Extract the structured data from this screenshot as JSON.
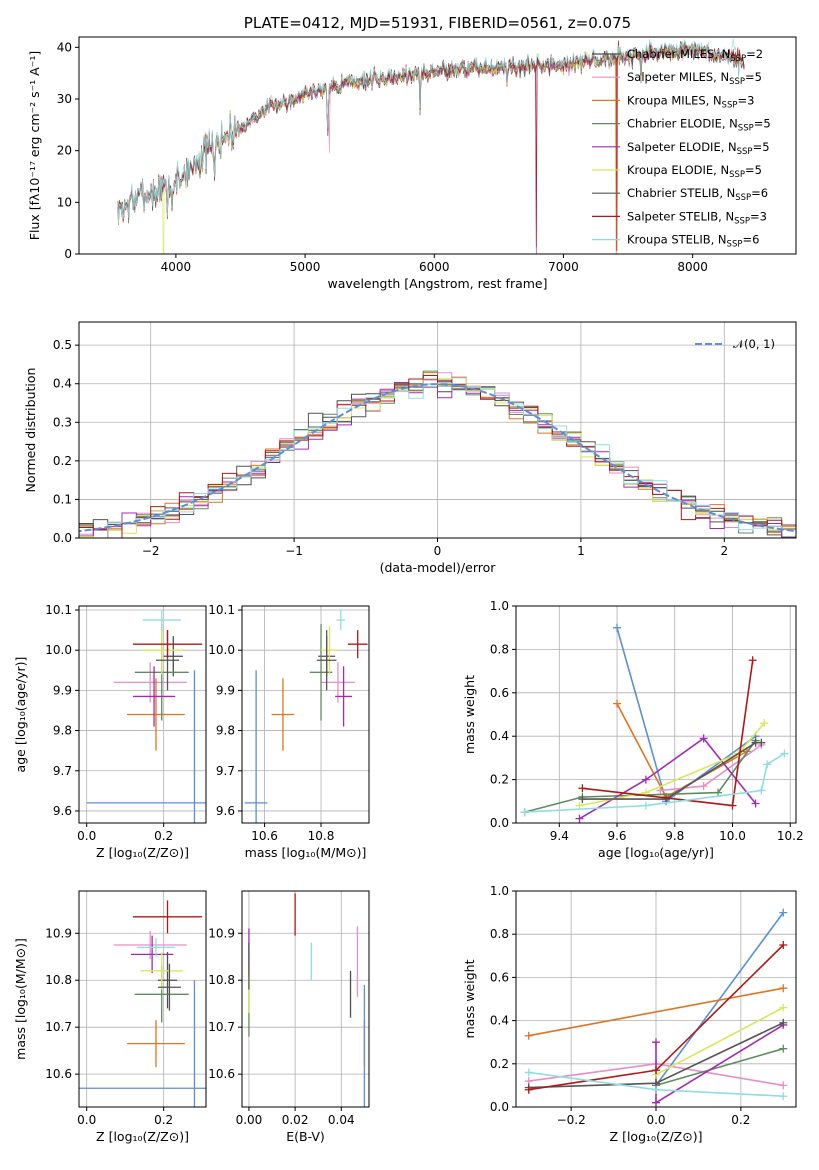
{
  "colors": {
    "c1": "#4d4d4d",
    "c2": "#e88ec6",
    "c3": "#e0741f",
    "c4": "#5f8c5f",
    "c5": "#a02cb3",
    "c6": "#d8e85a",
    "c7": "#555555",
    "c8": "#b01818",
    "c9": "#8fdde0",
    "blue": "#5b8fd9"
  },
  "chart_data": [
    {
      "type": "line",
      "title": "PLATE=0412, MJD=51931, FIBERID=0561, z=0.075",
      "xlabel": "wavelength [Angstrom, rest frame]",
      "ylabel": "Flux [fλ10⁻¹⁷ erg cm⁻² s⁻¹ A⁻¹]",
      "xlim": [
        3250,
        8800
      ],
      "ylim": [
        0,
        42
      ],
      "xticks": [
        "4000",
        "5000",
        "6000",
        "7000",
        "8000"
      ],
      "yticks": [
        "0",
        "10",
        "20",
        "30",
        "40"
      ],
      "grid": false,
      "legend_position": "right",
      "spectrum_shape": {
        "x": [
          3550,
          3700,
          3850,
          4000,
          4200,
          4400,
          4700,
          5000,
          5300,
          5600,
          5900,
          6200,
          6500,
          6800,
          7100,
          7400,
          7700,
          8000,
          8300,
          8400
        ],
        "y": [
          8,
          11,
          12,
          14,
          19,
          23,
          28,
          31,
          33,
          34,
          35,
          36,
          36,
          36.5,
          37,
          38,
          39,
          39.5,
          38,
          37
        ]
      },
      "series": [
        {
          "name_main": "Chabrier MILES, N",
          "name_sub": "SSP",
          "name_tail": "=2"
        },
        {
          "name_main": "Salpeter MILES, N",
          "name_sub": "SSP",
          "name_tail": "=5"
        },
        {
          "name_main": "Kroupa MILES, N",
          "name_sub": "SSP",
          "name_tail": "=3"
        },
        {
          "name_main": "Chabrier ELODIE, N",
          "name_sub": "SSP",
          "name_tail": "=5"
        },
        {
          "name_main": "Salpeter ELODIE, N",
          "name_sub": "SSP",
          "name_tail": "=5"
        },
        {
          "name_main": "Kroupa ELODIE, N",
          "name_sub": "SSP",
          "name_tail": "=5"
        },
        {
          "name_main": "Chabrier STELIB, N",
          "name_sub": "SSP",
          "name_tail": "=6"
        },
        {
          "name_main": "Salpeter STELIB, N",
          "name_sub": "SSP",
          "name_tail": "=3"
        },
        {
          "name_main": "Kroupa STELIB, N",
          "name_sub": "SSP",
          "name_tail": "=6"
        }
      ]
    },
    {
      "type": "histogram",
      "xlabel": "(data-model)/error",
      "ylabel": "Normed distribution",
      "xlim": [
        -2.5,
        2.5
      ],
      "ylim": [
        0,
        0.56
      ],
      "xticks": [
        "−2",
        "−1",
        "0",
        "1",
        "2"
      ],
      "yticks": [
        "0.0",
        "0.1",
        "0.2",
        "0.3",
        "0.4",
        "0.5"
      ],
      "grid": true,
      "legend_position": "top-right",
      "legend_label": "𝒩(0, 1)",
      "bin_width": 0.1
    },
    {
      "type": "scatter",
      "xlabel": "Z [log₁₀(Z/Z⊙)]",
      "ylabel": "age  [log₁₀(age/yr)]",
      "xlim": [
        -0.02,
        0.31
      ],
      "ylim": [
        9.57,
        10.11
      ],
      "xticks": [
        "0.0",
        "0.2"
      ],
      "yticks": [
        "9.6",
        "9.7",
        "9.8",
        "9.9",
        "10.0",
        "10.1"
      ],
      "grid": true,
      "points": [
        {
          "x": 0.225,
          "y": 9.985,
          "xerr": 0.025,
          "yerr": 0.05
        },
        {
          "x": 0.165,
          "y": 9.92,
          "xerr": 0.095,
          "yerr": 0.05
        },
        {
          "x": 0.18,
          "y": 9.84,
          "xerr": 0.075,
          "yerr": 0.09
        },
        {
          "x": 0.195,
          "y": 9.945,
          "xerr": 0.07,
          "yerr": 0.12
        },
        {
          "x": 0.175,
          "y": 9.885,
          "xerr": 0.055,
          "yerr": 0.075
        },
        {
          "x": 0.195,
          "y": 10.0,
          "xerr": 0.055,
          "yerr": 0.06
        },
        {
          "x": 0.21,
          "y": 9.975,
          "xerr": 0.03,
          "yerr": 0.075
        },
        {
          "x": 0.21,
          "y": 10.015,
          "xerr": 0.09,
          "yerr": 0.035
        },
        {
          "x": 0.195,
          "y": 10.075,
          "xerr": 0.05,
          "yerr": 0.025
        },
        {
          "x": 0.28,
          "y": 9.62,
          "xerr": 0.28,
          "yerr": 0.33
        }
      ]
    },
    {
      "type": "scatter",
      "xlabel": "mass [log₁₀(M/M⊙)]",
      "ylabel": "",
      "xlim": [
        10.52,
        10.97
      ],
      "ylim": [
        9.57,
        10.11
      ],
      "xticks": [
        "10.6",
        "10.8"
      ],
      "yticks": [
        "9.6",
        "9.7",
        "9.8",
        "9.9",
        "10.0",
        "10.1"
      ],
      "grid": true,
      "points": [
        {
          "x": 10.82,
          "y": 9.985,
          "xerr": 0.03,
          "yerr": 0.05
        },
        {
          "x": 10.86,
          "y": 9.92,
          "xerr": 0.06,
          "yerr": 0.05
        },
        {
          "x": 10.665,
          "y": 9.84,
          "xerr": 0.04,
          "yerr": 0.09
        },
        {
          "x": 10.8,
          "y": 9.945,
          "xerr": 0.04,
          "yerr": 0.12
        },
        {
          "x": 10.88,
          "y": 9.885,
          "xerr": 0.03,
          "yerr": 0.075
        },
        {
          "x": 10.83,
          "y": 10.0,
          "xerr": 0.03,
          "yerr": 0.06
        },
        {
          "x": 10.82,
          "y": 9.975,
          "xerr": 0.035,
          "yerr": 0.075
        },
        {
          "x": 10.93,
          "y": 10.015,
          "xerr": 0.035,
          "yerr": 0.035
        },
        {
          "x": 10.87,
          "y": 10.075,
          "xerr": 0.015,
          "yerr": 0.025
        },
        {
          "x": 10.57,
          "y": 9.62,
          "xerr": 0.04,
          "yerr": 0.33
        }
      ]
    },
    {
      "type": "line",
      "xlabel": "age  [log₁₀(age/yr)]",
      "ylabel": "mass weight",
      "xlim": [
        9.25,
        10.22
      ],
      "ylim": [
        0,
        1.0
      ],
      "xticks": [
        "9.4",
        "9.6",
        "9.8",
        "10.0",
        "10.2"
      ],
      "yticks": [
        "0.0",
        "0.2",
        "0.4",
        "0.6",
        "0.8",
        "1.0"
      ],
      "grid": true,
      "series": [
        {
          "x": [
            9.6,
            9.77,
            10.08
          ],
          "y": [
            0.9,
            0.1,
            0.4
          ]
        },
        {
          "x": [
            9.6,
            9.77,
            10.05
          ],
          "y": [
            0.55,
            0.12,
            0.33
          ]
        },
        {
          "x": [
            9.75,
            9.9,
            10.1
          ],
          "y": [
            0.15,
            0.17,
            0.36
          ]
        },
        {
          "x": [
            9.28,
            9.48,
            9.95,
            10.08
          ],
          "y": [
            0.05,
            0.12,
            0.14,
            0.38
          ]
        },
        {
          "x": [
            9.47,
            9.7,
            9.9,
            10.08
          ],
          "y": [
            0.02,
            0.2,
            0.39,
            0.09
          ]
        },
        {
          "x": [
            9.47,
            9.7,
            10.02,
            10.11
          ],
          "y": [
            0.08,
            0.14,
            0.32,
            0.46
          ]
        },
        {
          "x": [
            9.48,
            9.77,
            10.08,
            10.1
          ],
          "y": [
            0.11,
            0.11,
            0.37,
            0.37
          ]
        },
        {
          "x": [
            9.48,
            10.0,
            10.07
          ],
          "y": [
            0.16,
            0.08,
            0.75
          ]
        },
        {
          "x": [
            9.28,
            9.7,
            10.1,
            10.12,
            10.18
          ],
          "y": [
            0.05,
            0.08,
            0.15,
            0.27,
            0.32
          ]
        }
      ]
    },
    {
      "type": "scatter",
      "xlabel": "Z [log₁₀(Z/Z⊙)]",
      "ylabel": "mass [log₁₀(M/M⊙)]",
      "xlim": [
        -0.02,
        0.31
      ],
      "ylim": [
        10.53,
        10.99
      ],
      "xticks": [
        "0.0",
        "0.2"
      ],
      "yticks": [
        "10.6",
        "10.7",
        "10.8",
        "10.9"
      ],
      "grid": true,
      "points": [
        {
          "x": 0.21,
          "y": 10.8,
          "xerr": 0.025,
          "yerr": 0.06
        },
        {
          "x": 0.165,
          "y": 10.875,
          "xerr": 0.095,
          "yerr": 0.03
        },
        {
          "x": 0.18,
          "y": 10.665,
          "xerr": 0.075,
          "yerr": 0.05
        },
        {
          "x": 0.195,
          "y": 10.77,
          "xerr": 0.07,
          "yerr": 0.06
        },
        {
          "x": 0.17,
          "y": 10.855,
          "xerr": 0.055,
          "yerr": 0.04
        },
        {
          "x": 0.195,
          "y": 10.82,
          "xerr": 0.055,
          "yerr": 0.04
        },
        {
          "x": 0.215,
          "y": 10.785,
          "xerr": 0.03,
          "yerr": 0.05
        },
        {
          "x": 0.21,
          "y": 10.935,
          "xerr": 0.09,
          "yerr": 0.035
        },
        {
          "x": 0.18,
          "y": 10.87,
          "xerr": 0.05,
          "yerr": 0.02
        },
        {
          "x": 0.28,
          "y": 10.57,
          "xerr": 0.3,
          "yerr": 0.23
        }
      ]
    },
    {
      "type": "scatter",
      "xlabel": "E(B-V)",
      "ylabel": "",
      "xlim": [
        -0.003,
        0.052
      ],
      "ylim": [
        10.53,
        10.99
      ],
      "xticks": [
        "0.00",
        "0.02",
        "0.04"
      ],
      "yticks": [
        "10.6",
        "10.7",
        "10.8",
        "10.9"
      ],
      "grid": true,
      "points": [
        {
          "x": 0.044,
          "y": 10.77,
          "yerr": 0.05
        },
        {
          "x": 0.047,
          "y": 10.84,
          "yerr": 0.075
        },
        {
          "x": 0.05,
          "y": 10.665,
          "yerr": 0.05
        },
        {
          "x": 0.0,
          "y": 10.73,
          "yerr": 0.05
        },
        {
          "x": 0.0,
          "y": 10.86,
          "yerr": 0.05
        },
        {
          "x": 0.0,
          "y": 10.78,
          "yerr": 0.05
        },
        {
          "x": 0.0,
          "y": 10.83,
          "yerr": 0.05
        },
        {
          "x": 0.02,
          "y": 10.94,
          "yerr": 0.045
        },
        {
          "x": 0.027,
          "y": 10.84,
          "yerr": 0.04
        },
        {
          "x": 0.05,
          "y": 10.56,
          "yerr": 0.23
        }
      ]
    },
    {
      "type": "line",
      "xlabel": "Z [log₁₀(Z/Z⊙)]",
      "ylabel": "mass weight",
      "xlim": [
        -0.33,
        0.33
      ],
      "ylim": [
        0,
        1.0
      ],
      "xticks": [
        "−0.2",
        "0.0",
        "0.2"
      ],
      "yticks": [
        "0.0",
        "0.2",
        "0.4",
        "0.6",
        "0.8",
        "1.0"
      ],
      "grid": true,
      "series": [
        {
          "x": [
            0.0,
            0.3
          ],
          "y": [
            0.1,
            0.9
          ]
        },
        {
          "x": [
            -0.3,
            0.3
          ],
          "y": [
            0.33,
            0.55
          ]
        },
        {
          "x": [
            -0.3,
            0.0,
            0.3
          ],
          "y": [
            0.12,
            0.2,
            0.1
          ]
        },
        {
          "x": [
            0.0,
            0.3
          ],
          "y": [
            0.1,
            0.27
          ]
        },
        {
          "x": [
            0.0,
            0.0,
            0.3
          ],
          "y": [
            0.3,
            0.02,
            0.38
          ]
        },
        {
          "x": [
            0.0,
            0.3
          ],
          "y": [
            0.15,
            0.46
          ]
        },
        {
          "x": [
            -0.3,
            0.0,
            0.3
          ],
          "y": [
            0.09,
            0.11,
            0.39
          ]
        },
        {
          "x": [
            -0.3,
            0.0,
            0.3
          ],
          "y": [
            0.08,
            0.17,
            0.75
          ]
        },
        {
          "x": [
            -0.3,
            0.0,
            0.3
          ],
          "y": [
            0.16,
            0.08,
            0.05
          ]
        }
      ]
    }
  ]
}
